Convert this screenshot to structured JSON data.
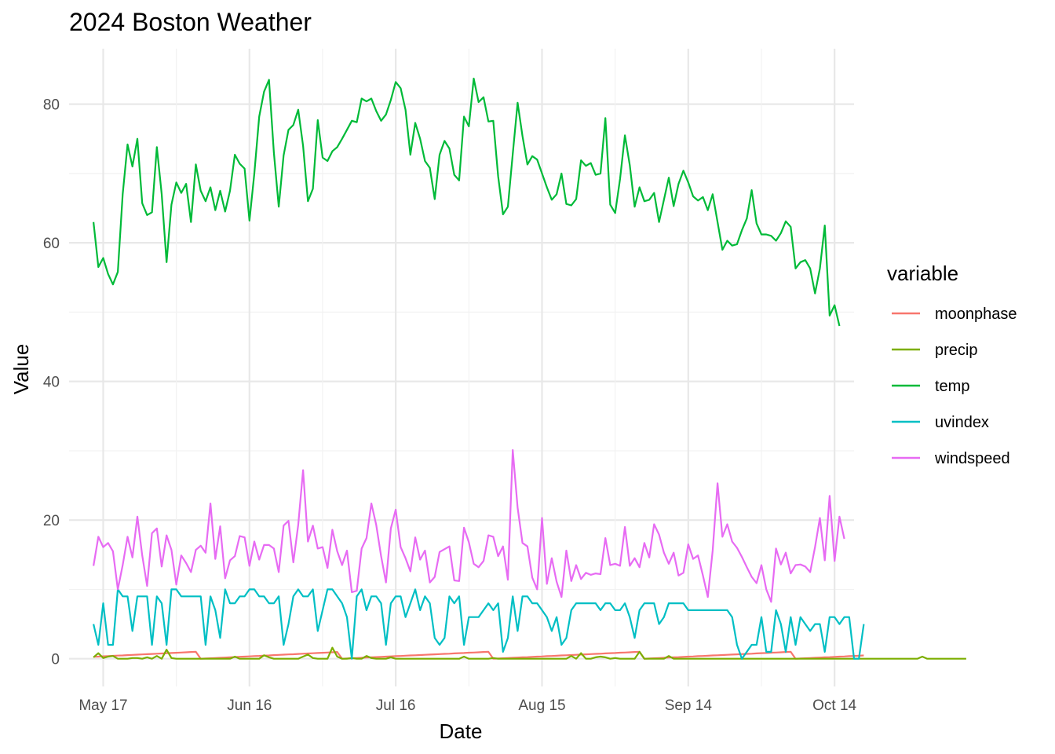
{
  "chart_data": {
    "type": "line",
    "title": "2024 Boston Weather",
    "xlabel": "Date",
    "ylabel": "Value",
    "x_axis": {
      "type": "date",
      "range": [
        "2024-05-10",
        "2024-10-18"
      ],
      "ticks": [
        {
          "date": "2024-05-17",
          "label": "May 17"
        },
        {
          "date": "2024-06-16",
          "label": "Jun 16"
        },
        {
          "date": "2024-07-16",
          "label": "Jul 16"
        },
        {
          "date": "2024-08-15",
          "label": "Aug 15"
        },
        {
          "date": "2024-09-14",
          "label": "Sep 14"
        },
        {
          "date": "2024-10-14",
          "label": "Oct 14"
        }
      ]
    },
    "y_axis": {
      "range": [
        -4,
        88
      ],
      "ticks": [
        0,
        20,
        40,
        60,
        80
      ]
    },
    "grid": true,
    "legend": {
      "title": "variable",
      "position": "right"
    },
    "start_date": "2024-05-15",
    "series": [
      {
        "name": "moonphase",
        "color": "#F8766D",
        "values": [
          0.28,
          0.31,
          0.35,
          0.38,
          0.42,
          0.45,
          0.48,
          0.52,
          0.55,
          0.59,
          0.62,
          0.66,
          0.69,
          0.72,
          0.76,
          0.79,
          0.83,
          0.86,
          0.9,
          0.93,
          0.97,
          1.0,
          0.0,
          0.03,
          0.07,
          0.1,
          0.14,
          0.17,
          0.21,
          0.24,
          0.28,
          0.31,
          0.34,
          0.38,
          0.41,
          0.45,
          0.48,
          0.52,
          0.55,
          0.59,
          0.62,
          0.65,
          0.69,
          0.72,
          0.76,
          0.79,
          0.83,
          0.86,
          0.9,
          0.93,
          0.97,
          0.0,
          0.03,
          0.07,
          0.1,
          0.13,
          0.17,
          0.2,
          0.24,
          0.27,
          0.3,
          0.34,
          0.37,
          0.4,
          0.44,
          0.47,
          0.5,
          0.53,
          0.57,
          0.6,
          0.63,
          0.67,
          0.7,
          0.73,
          0.77,
          0.8,
          0.83,
          0.87,
          0.9,
          0.93,
          0.97,
          1.0,
          0.0,
          0.03,
          0.07,
          0.1,
          0.13,
          0.17,
          0.2,
          0.23,
          0.27,
          0.3,
          0.33,
          0.37,
          0.4,
          0.43,
          0.47,
          0.5,
          0.53,
          0.57,
          0.6,
          0.63,
          0.67,
          0.7,
          0.73,
          0.77,
          0.8,
          0.83,
          0.87,
          0.9,
          0.93,
          0.97,
          1.0,
          0.0,
          0.03,
          0.07,
          0.1,
          0.13,
          0.17,
          0.2,
          0.23,
          0.27,
          0.3,
          0.33,
          0.37,
          0.4,
          0.43,
          0.47,
          0.5,
          0.53,
          0.57,
          0.6,
          0.63,
          0.67,
          0.7,
          0.73,
          0.77,
          0.8,
          0.83,
          0.87,
          0.9,
          0.93,
          0.97,
          1.0,
          0.0,
          0.03,
          0.07,
          0.1,
          0.13,
          0.17,
          0.2,
          0.23,
          0.27,
          0.3,
          0.33,
          0.37,
          0.4,
          0.43,
          0.47
        ]
      },
      {
        "name": "precip",
        "color": "#7CAE00",
        "values": [
          0.2,
          0.8,
          0.1,
          0.3,
          0.4,
          0.0,
          0.0,
          0.0,
          0.1,
          0.1,
          0.0,
          0.2,
          0.0,
          0.4,
          0.0,
          1.3,
          0.1,
          0.0,
          0.0,
          0.0,
          0.0,
          0.0,
          0.0,
          0.0,
          0.0,
          0.0,
          0.0,
          0.0,
          0.0,
          0.3,
          0.0,
          0.0,
          0.0,
          0.0,
          0.0,
          0.5,
          0.2,
          0.0,
          0.0,
          0.0,
          0.0,
          0.0,
          0.0,
          0.3,
          0.6,
          0.1,
          0.0,
          0.0,
          0.0,
          1.6,
          0.3,
          0.0,
          0.0,
          0.1,
          0.0,
          0.0,
          0.4,
          0.1,
          0.0,
          0.0,
          0.0,
          0.2,
          0.0,
          0.0,
          0.0,
          0.0,
          0.0,
          0.0,
          0.0,
          0.0,
          0.0,
          0.0,
          0.0,
          0.0,
          0.0,
          0.0,
          0.3,
          0.0,
          0.0,
          0.0,
          0.0,
          0.0,
          0.1,
          0.0,
          0.0,
          0.0,
          0.0,
          0.0,
          0.0,
          0.0,
          0.0,
          0.0,
          0.0,
          0.0,
          0.0,
          0.0,
          0.0,
          0.0,
          0.4,
          0.0,
          0.8,
          0.0,
          0.0,
          0.2,
          0.3,
          0.2,
          0.0,
          0.1,
          0.0,
          0.0,
          0.0,
          0.0,
          1.0,
          0.0,
          0.0,
          0.0,
          0.0,
          0.0,
          0.4,
          0.0,
          0.0,
          0.0,
          0.0,
          0.0,
          0.0,
          0.0,
          0.0,
          0.0,
          0.0,
          0.0,
          0.0,
          0.0,
          0.0,
          0.0,
          0.0,
          0.0,
          0.0,
          0.0,
          0.0,
          0.0,
          0.0,
          0.0,
          0.0,
          0.0,
          0.0,
          0.0,
          0.0,
          0.0,
          0.0,
          0.0,
          0.0,
          0.0,
          0.0,
          0.0,
          0.0,
          0.0,
          0.0,
          0.0,
          0.0,
          0.0,
          0.0,
          0.0,
          0.0,
          0.0,
          0.0,
          0.0,
          0.0,
          0.0,
          0.0,
          0.0,
          0.3,
          0.0,
          0.0,
          0.0,
          0.0,
          0.0,
          0.0,
          0.0,
          0.0,
          0.0
        ]
      },
      {
        "name": "temp",
        "color": "#00BA38",
        "values": [
          63,
          56.5,
          57.8,
          55.5,
          54,
          55.8,
          67,
          74.2,
          71,
          75,
          65.7,
          64,
          64.4,
          73.8,
          67,
          57.2,
          65.5,
          68.7,
          67.2,
          68.5,
          63,
          71.3,
          67.5,
          66,
          68,
          64.7,
          67.5,
          64.5,
          67.5,
          72.7,
          71.4,
          70.7,
          63.2,
          70,
          78.2,
          81.8,
          83.5,
          73,
          65.2,
          72.6,
          76.3,
          77,
          79.2,
          74,
          66,
          67.8,
          77.7,
          72.3,
          71.8,
          73.2,
          73.8,
          75,
          76.3,
          77.6,
          77.4,
          80.8,
          80.4,
          80.8,
          79,
          77.6,
          78.5,
          80.6,
          83.2,
          82.3,
          79.2,
          72.7,
          77.3,
          75,
          71.8,
          70.8,
          66.3,
          72.7,
          74.7,
          73.6,
          69.8,
          69,
          78.2,
          76.8,
          83.7,
          80.3,
          81,
          77.5,
          77.6,
          69.6,
          64.1,
          65.2,
          72.8,
          80.2,
          75.4,
          71.3,
          72.5,
          72,
          70,
          68,
          66.2,
          67,
          70,
          65.6,
          65.4,
          66.3,
          71.9,
          71.1,
          71.5,
          69.8,
          70,
          78,
          65.5,
          64.3,
          69.2,
          75.5,
          71.2,
          65.2,
          68,
          66,
          66.2,
          67.2,
          63,
          66.2,
          69.4,
          65.3,
          68.5,
          70.4,
          68.7,
          66.7,
          66.1,
          66.6,
          64.7,
          67,
          63,
          59,
          60.3,
          59.6,
          59.8,
          61.8,
          63.5,
          67.6,
          62.8,
          61.2,
          61.2,
          61,
          60.3,
          61.4,
          63.1,
          62.3,
          56.3,
          57.2,
          57.5,
          56.3,
          52.7,
          56.3,
          62.5,
          49.5,
          51,
          48
        ]
      },
      {
        "name": "uvindex",
        "color": "#00BFC4",
        "values": [
          5,
          2,
          8,
          2,
          2,
          10,
          9,
          9,
          4,
          9,
          9,
          9,
          2,
          9,
          8,
          2,
          10,
          10,
          9,
          9,
          9,
          9,
          9,
          2,
          9,
          7,
          3,
          10,
          8,
          8,
          9,
          9,
          10,
          10,
          9,
          9,
          8,
          8,
          9,
          2,
          5,
          9,
          10,
          9,
          9,
          10,
          4,
          7,
          10,
          10,
          9,
          8,
          6,
          0,
          9,
          10,
          7,
          9,
          9,
          8,
          2,
          8,
          9,
          9,
          6,
          8,
          10,
          7,
          9,
          8,
          3,
          2,
          3,
          9,
          8,
          9,
          2,
          6,
          6,
          6,
          7,
          8,
          7,
          8,
          1,
          3,
          9,
          4,
          9,
          9,
          8,
          8,
          7,
          6,
          4,
          6,
          2,
          3,
          7,
          8,
          8,
          8,
          8,
          8,
          7,
          8,
          8,
          7,
          7,
          8,
          6,
          3,
          7,
          8,
          8,
          8,
          5,
          6,
          8,
          8,
          8,
          8,
          7,
          7,
          7,
          7,
          7,
          7,
          7,
          7,
          7,
          6,
          2,
          0,
          1,
          2,
          2,
          6,
          1,
          1,
          7,
          5,
          1,
          6,
          2,
          6,
          5,
          4,
          5,
          5,
          1,
          6,
          6,
          5,
          6,
          6,
          0,
          0,
          5
        ]
      },
      {
        "name": "windspeed",
        "color": "#E76BF3",
        "values": [
          13.4,
          17.6,
          16.1,
          16.7,
          15.5,
          10,
          13.5,
          17.6,
          14.6,
          20.5,
          14.9,
          10.5,
          18.1,
          18.8,
          13.3,
          17.8,
          15.7,
          10.7,
          14.9,
          13.8,
          12.5,
          15.7,
          16.3,
          15.3,
          22.4,
          14.4,
          19.1,
          11.6,
          14.2,
          14.8,
          17.7,
          17.5,
          13.4,
          16.9,
          14.3,
          16.4,
          16.4,
          15.9,
          12.5,
          19.2,
          19.9,
          13.9,
          19.3,
          27.2,
          16.9,
          19.2,
          15.9,
          16.1,
          13.1,
          18.6,
          15.5,
          13.5,
          15.6,
          9.6,
          9.8,
          15.9,
          17.4,
          22.4,
          19.3,
          14.8,
          11,
          18.8,
          21.5,
          16.1,
          14.5,
          12.6,
          17.5,
          14.3,
          15.6,
          11,
          11.8,
          15.4,
          15.8,
          16.2,
          11.3,
          11.2,
          18.9,
          16.8,
          13.7,
          13.2,
          14.1,
          17.8,
          17.6,
          14.8,
          16.2,
          11.4,
          30.1,
          21.8,
          16.7,
          16.2,
          11.7,
          10,
          20.3,
          10.8,
          14.5,
          11.1,
          8.9,
          15.6,
          11.2,
          13.5,
          11.5,
          12.4,
          12.1,
          12.3,
          12.2,
          17.4,
          13.5,
          13.7,
          13.4,
          19,
          13.4,
          14.5,
          13.2,
          16.7,
          14.6,
          19.4,
          17.9,
          15.3,
          13.7,
          15.3,
          12,
          12.4,
          16.5,
          14.4,
          14.9,
          12,
          8.9,
          15.6,
          25.3,
          17.6,
          19.4,
          16.9,
          16,
          14.7,
          13.2,
          11.8,
          10.9,
          13.5,
          10,
          8.2,
          15.9,
          13.6,
          15.3,
          12.3,
          13.5,
          13.6,
          13.3,
          12.5,
          16.1,
          20.3,
          14.2,
          23.5,
          14.1,
          20.5,
          17.3
        ]
      }
    ]
  }
}
